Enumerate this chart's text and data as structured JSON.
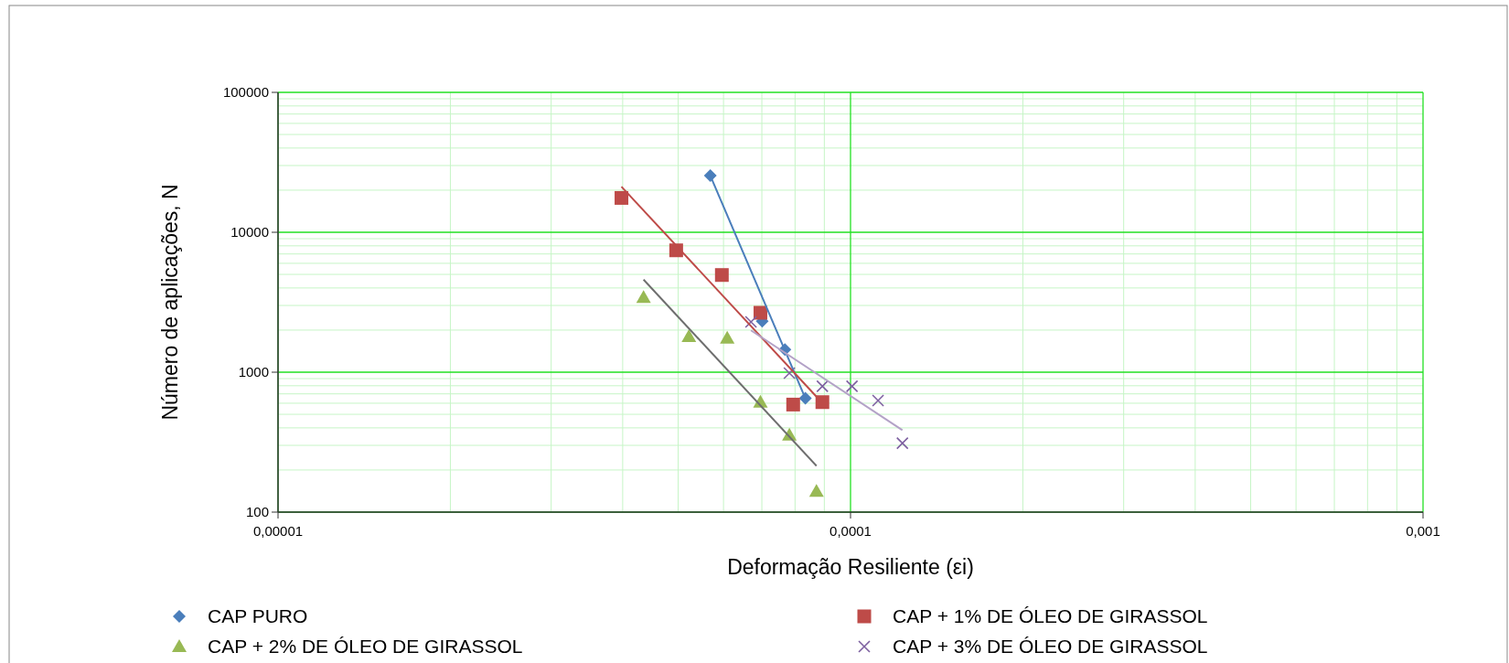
{
  "chart_data": {
    "type": "scatter",
    "xlabel": "Deformação Resiliente (εi)",
    "ylabel": "Número de aplicações, N",
    "log": "xy",
    "grid": true,
    "legend": "bottom",
    "xlim": [
      1e-05,
      0.001
    ],
    "xticks": [
      {
        "value": 1e-05,
        "label": "0,00001"
      },
      {
        "value": 2e-05,
        "label": null
      },
      {
        "value": 3e-05,
        "label": null
      },
      {
        "value": 4e-05,
        "label": null
      },
      {
        "value": 5e-05,
        "label": null
      },
      {
        "value": 6e-05,
        "label": null
      },
      {
        "value": 7e-05,
        "label": null
      },
      {
        "value": 8e-05,
        "label": null
      },
      {
        "value": 9e-05,
        "label": null
      },
      {
        "value": 0.0001,
        "label": "0,0001"
      },
      {
        "value": 0.0002,
        "label": null
      },
      {
        "value": 0.0003,
        "label": null
      },
      {
        "value": 0.0004,
        "label": null
      },
      {
        "value": 0.0005,
        "label": null
      },
      {
        "value": 0.0006,
        "label": null
      },
      {
        "value": 0.0007,
        "label": null
      },
      {
        "value": 0.0008,
        "label": null
      },
      {
        "value": 0.0009,
        "label": null
      },
      {
        "value": 0.001,
        "label": "0,001"
      }
    ],
    "ylim": [
      100,
      100000
    ],
    "yticks": [
      100,
      {
        "value": 200,
        "label": null
      },
      {
        "value": 300,
        "label": null
      },
      {
        "value": 400,
        "label": null
      },
      {
        "value": 500,
        "label": null
      },
      {
        "value": 600,
        "label": null
      },
      {
        "value": 700,
        "label": null
      },
      {
        "value": 800,
        "label": null
      },
      {
        "value": 900,
        "label": null
      },
      1000,
      {
        "value": 2000,
        "label": null
      },
      {
        "value": 3000,
        "label": null
      },
      {
        "value": 4000,
        "label": null
      },
      {
        "value": 5000,
        "label": null
      },
      {
        "value": 6000,
        "label": null
      },
      {
        "value": 7000,
        "label": null
      },
      {
        "value": 8000,
        "label": null
      },
      {
        "value": 9000,
        "label": null
      },
      10000,
      {
        "value": 20000,
        "label": null
      },
      {
        "value": 30000,
        "label": null
      },
      {
        "value": 40000,
        "label": null
      },
      {
        "value": 50000,
        "label": null
      },
      {
        "value": 60000,
        "label": null
      },
      {
        "value": 70000,
        "label": null
      },
      {
        "value": 80000,
        "label": null
      },
      {
        "value": 90000,
        "label": null
      },
      100000
    ],
    "series": [
      {
        "name": "CAP PURO",
        "color": "#4a7ebb",
        "marker": "diamond",
        "x": [
          5.69e-05,
          7.01e-05,
          7.68e-05,
          8.34e-05
        ],
        "values": [
          25400,
          2310,
          1450,
          650
        ]
      },
      {
        "name": "CAP + 1% DE ÓLEO DE GIRASSOL",
        "color": "#be4b48",
        "marker": "square",
        "x": [
          3.98e-05,
          4.96e-05,
          5.96e-05,
          6.96e-05,
          7.94e-05,
          8.93e-05
        ],
        "values": [
          17600,
          7430,
          4950,
          2660,
          587,
          611
        ]
      },
      {
        "name": "CAP + 2% DE ÓLEO DE GIRASSOL",
        "color": "#98b954",
        "marker": "triangle",
        "x": [
          4.35e-05,
          5.22e-05,
          6.09e-05,
          6.96e-05,
          7.82e-05,
          8.72e-05
        ],
        "values": [
          3420,
          1800,
          1750,
          611,
          356,
          141
        ]
      },
      {
        "name": "CAP + 3% DE ÓLEO DE GIRASSOL",
        "color": "#7d60a0",
        "marker": "cross",
        "x": [
          6.7e-05,
          7.82e-05,
          8.93e-05,
          0.0001006,
          0.0001117,
          0.0001232
        ],
        "values": [
          2290,
          985,
          794,
          794,
          627,
          311
        ]
      },
      {
        "type": "line",
        "color": "#4a7ebb",
        "marker": "none",
        "x": [
          5.69e-05,
          8.34e-05
        ],
        "values": [
          25400,
          650
        ]
      },
      {
        "type": "line",
        "color": "#be4b48",
        "marker": "none",
        "x": [
          3.98e-05,
          8.72e-05
        ],
        "values": [
          21200,
          669
        ]
      },
      {
        "type": "line",
        "color": "#6e6e6e",
        "marker": "none",
        "x": [
          4.35e-05,
          8.72e-05
        ],
        "values": [
          4590,
          214
        ]
      },
      {
        "type": "line",
        "color": "#b3a2c7",
        "marker": "none",
        "x": [
          6.7e-05,
          0.0001232
        ],
        "values": [
          1990,
          385
        ]
      }
    ]
  }
}
